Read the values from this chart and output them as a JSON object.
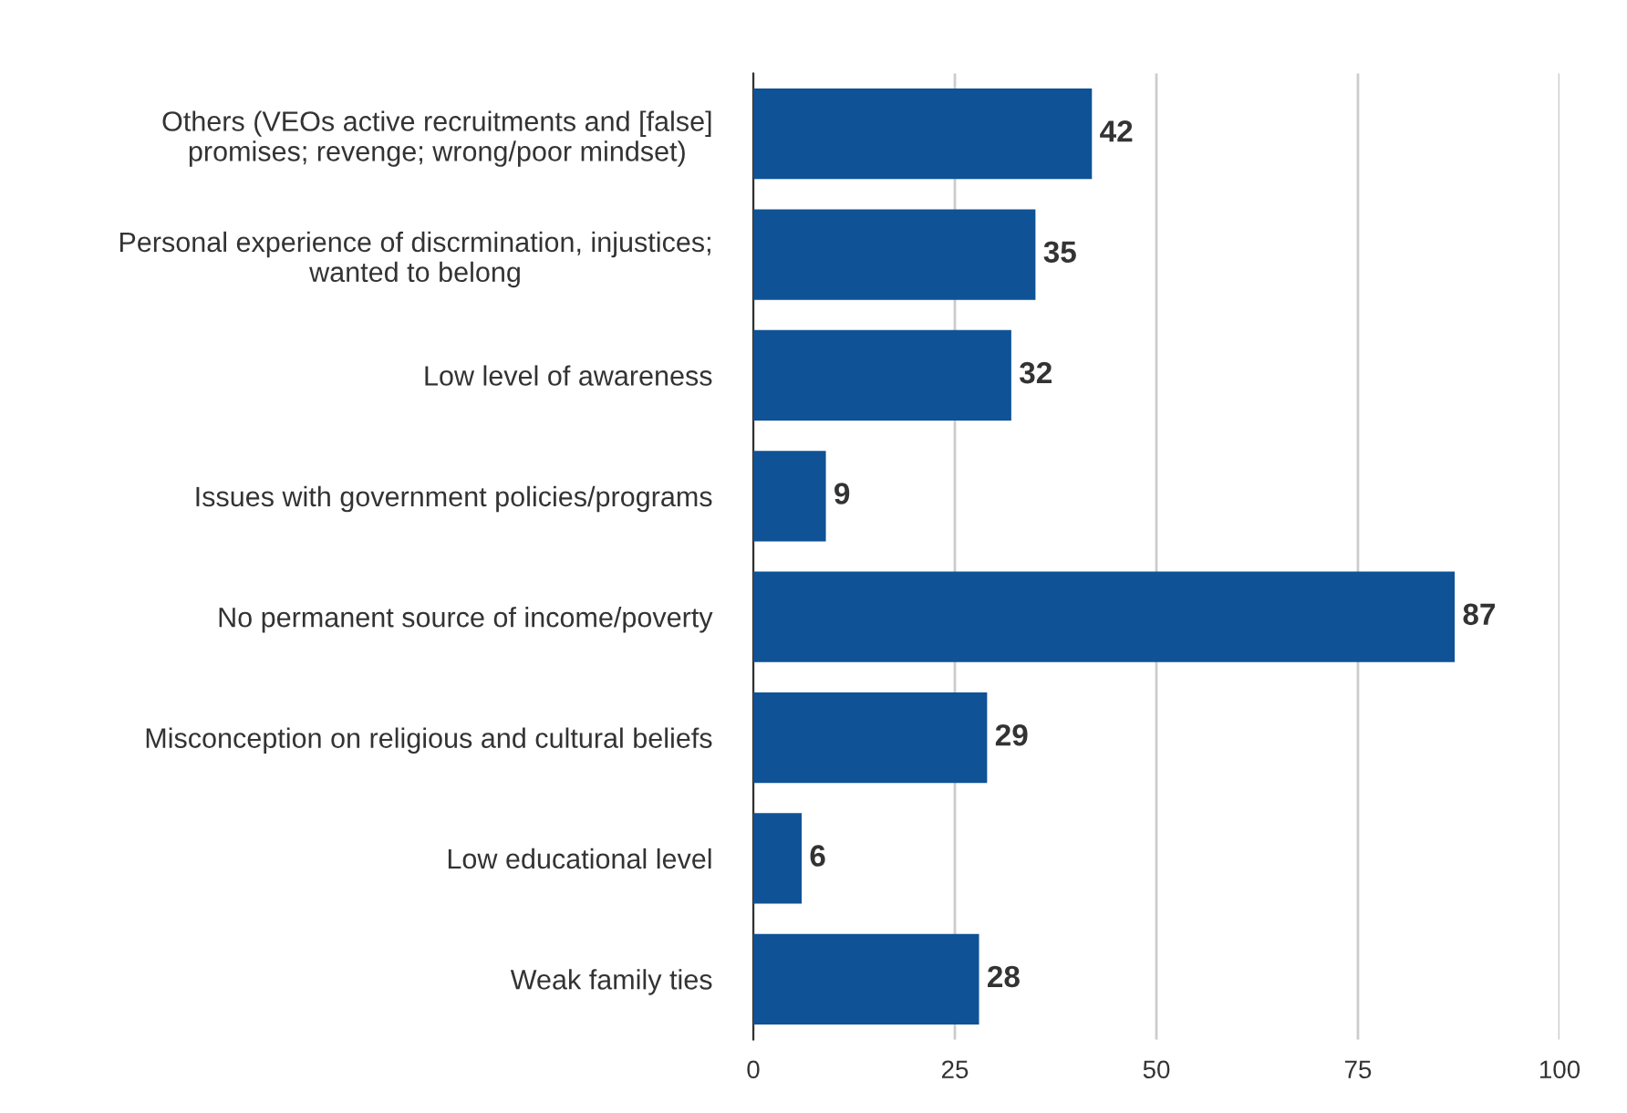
{
  "chart_data": {
    "type": "bar",
    "orientation": "horizontal",
    "categories": [
      "Others (VEOs active recruitments and [false]\npromises; revenge; wrong/poor mindset)",
      "Personal experience of discrmination, injustices;\nwanted to belong",
      "Low level of awareness",
      "Issues with government policies/programs",
      "No permanent source of income/poverty",
      "Misconception on religious and cultural beliefs",
      "Low educational level",
      "Weak family ties"
    ],
    "values": [
      42,
      35,
      32,
      9,
      87,
      29,
      6,
      28
    ],
    "color": "#0f5296",
    "xlim": [
      0,
      100
    ],
    "xticks": [
      0,
      25,
      50,
      75,
      100
    ],
    "grid": "x",
    "data_labels": true
  }
}
